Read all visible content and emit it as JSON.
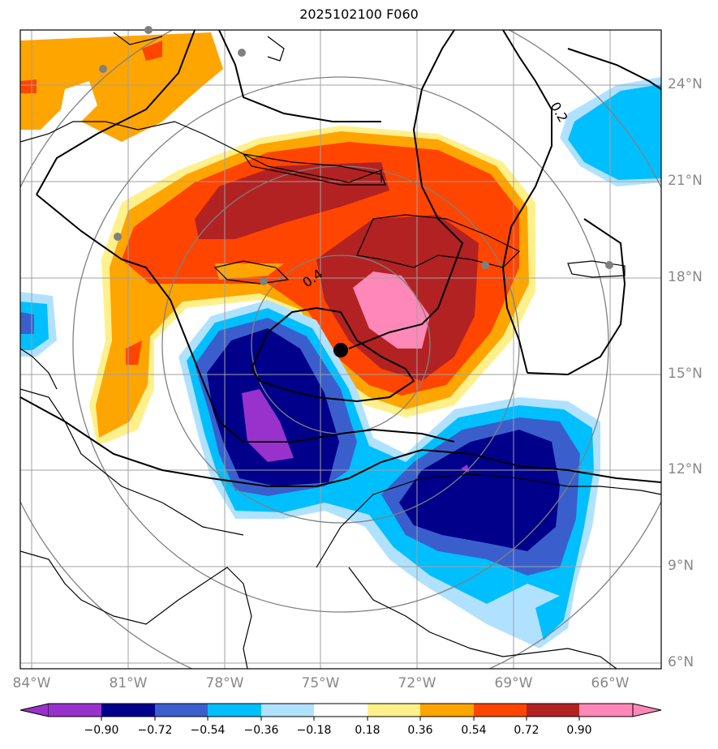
{
  "title": "2025102100 F060",
  "map": {
    "lat_ticks": [
      "24°N",
      "21°N",
      "18°N",
      "15°N",
      "12°N",
      "9°N",
      "6°N"
    ],
    "lon_ticks": [
      "84°W",
      "81°W",
      "78°W",
      "75°W",
      "72°W",
      "69°W",
      "66°W"
    ],
    "contour_labels": [
      "0.2",
      "0.4"
    ],
    "center_marker": {
      "lon": -74.3,
      "lat": 15.7
    },
    "stations": [
      {
        "lon": -81.9,
        "lat": 24.5
      },
      {
        "lon": -80.4,
        "lat": 25.8
      },
      {
        "lon": -77.4,
        "lat": 25.0
      },
      {
        "lon": -81.4,
        "lat": 19.3
      },
      {
        "lon": -76.8,
        "lat": 17.9
      },
      {
        "lon": -69.9,
        "lat": 18.4
      },
      {
        "lon": -66.0,
        "lat": 18.4
      }
    ]
  },
  "colorbar": {
    "levels": [
      "−0.90",
      "−0.72",
      "−0.54",
      "−0.36",
      "−0.18",
      "0.18",
      "0.36",
      "0.54",
      "0.72",
      "0.90"
    ],
    "colors": [
      "#9932cc",
      "#00008b",
      "#3a5fcd",
      "#00bfff",
      "#b0e2ff",
      "#ffffff",
      "#fff08c",
      "#ffa500",
      "#ff4500",
      "#b22222",
      "#ff88b8"
    ]
  },
  "palette": {
    "grid": "#a0a0a0",
    "tick_text": "#888888",
    "station": "#808080",
    "coast": "#000000"
  }
}
